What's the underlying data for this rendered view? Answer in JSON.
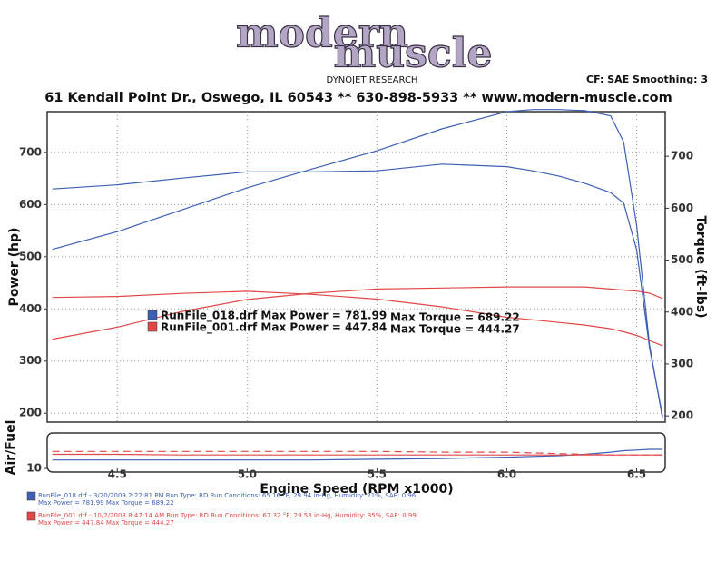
{
  "header": {
    "logo_top": "modern",
    "logo_bottom": "muscle",
    "company": "DYNOJET RESEARCH",
    "settings": "CF: SAE  Smoothing: 3",
    "address": "61 Kendall Point Dr., Oswego, IL 60543 ** 630-898-5933 ** www.modern-muscle.com"
  },
  "chart_data": [
    {
      "type": "line",
      "ylabel": "Power (hp)",
      "y2label": "Torque (ft-lbs)",
      "x": [
        4.25,
        4.5,
        4.75,
        5.0,
        5.25,
        5.5,
        5.75,
        6.0,
        6.1,
        6.2,
        6.3,
        6.4,
        6.45,
        6.5,
        6.55,
        6.6
      ],
      "xlim": [
        4.23,
        6.61
      ],
      "xticks": [
        4.5,
        {
          "value": 5,
          "label": "5.0"
        },
        5.5,
        {
          "value": 6,
          "label": "6.0"
        },
        6.5
      ],
      "ylim": [
        183,
        778
      ],
      "yticks": [
        200,
        300,
        400,
        500,
        600,
        700
      ],
      "y2lim": [
        188,
        786
      ],
      "y2ticks": [
        200,
        300,
        400,
        500,
        600,
        700
      ],
      "grid": true,
      "series": [
        {
          "color": "#3d5fb4",
          "values": [
            514,
            548,
            590,
            632,
            668,
            703,
            745,
            778,
            782,
            782,
            780,
            770,
            720,
            560,
            330,
            190
          ]
        },
        {
          "color": "#3d5fb4",
          "axis": "y2",
          "values": [
            637,
            645,
            658,
            670,
            670,
            672,
            685,
            680,
            672,
            662,
            648,
            630,
            610,
            520,
            330,
            200
          ]
        },
        {
          "color": "#e04848",
          "values": [
            342,
            365,
            395,
            418,
            430,
            438,
            440,
            442,
            442,
            442,
            442,
            438,
            436,
            434,
            430,
            420
          ]
        },
        {
          "color": "#e04848",
          "axis": "y2",
          "values": [
            428,
            430,
            436,
            440,
            434,
            425,
            410,
            390,
            385,
            380,
            375,
            368,
            362,
            355,
            345,
            335
          ]
        }
      ],
      "legend": [
        {
          "color": "#3d5fb4",
          "power": "RunFile_018.drf Max Power = 781.99",
          "torque": "Max Torque = 689.22"
        },
        {
          "color": "#e04848",
          "power": "RunFile_001.drf Max Power = 447.84",
          "torque": "Max Torque = 444.27"
        }
      ]
    },
    {
      "type": "line",
      "ylabel": "Air/Fuel",
      "xlabel": "Engine Speed (RPM x1000)",
      "x": [
        4.25,
        4.5,
        4.75,
        5.0,
        5.25,
        5.5,
        5.75,
        6.0,
        6.1,
        6.2,
        6.3,
        6.4,
        6.45,
        6.5,
        6.55,
        6.6
      ],
      "xlim": [
        4.23,
        6.61
      ],
      "ylim": [
        9.5,
        15
      ],
      "yticks": [
        10
      ],
      "series": [
        {
          "color": "#3d5fb4",
          "values": [
            11.2,
            11.2,
            11.2,
            11.2,
            11.2,
            11.3,
            11.4,
            11.6,
            11.7,
            11.8,
            12.0,
            12.3,
            12.5,
            12.6,
            12.7,
            12.7
          ]
        },
        {
          "color": "#e04848",
          "values": [
            12.0,
            12.0,
            11.9,
            11.9,
            11.9,
            11.9,
            11.9,
            11.9,
            11.9,
            11.9,
            11.9,
            11.9,
            11.9,
            11.9,
            11.9,
            11.9
          ]
        },
        {
          "color": "#e04848",
          "dash": true,
          "values": [
            12.4,
            12.4,
            12.4,
            12.4,
            12.4,
            12.4,
            12.3,
            12.3,
            12.2,
            12.1,
            12.0,
            11.9,
            11.9,
            11.9,
            11.9,
            11.9
          ]
        }
      ]
    }
  ],
  "footer": [
    {
      "color": "#3d5fb4",
      "line1": "RunFile_018.drf - 3/20/2009 2:22:81 PM  Run Type: RD  Run Conditions: 65.16 °F, 29.94 in-Hg, Humidity: 21%, SAE: 0.96",
      "line2": "Max Power = 781.99  Max Torque = 689.22"
    },
    {
      "color": "#e04848",
      "line1": "RunFile_001.drf - 10/2/2008 8:47:14 AM  Run Type: RD  Run Conditions: 67.32 °F, 29.53 in-Hg, Humidity: 35%, SAE: 0.99",
      "line2": "Max Power = 447.84  Max Torque = 444.27"
    }
  ]
}
